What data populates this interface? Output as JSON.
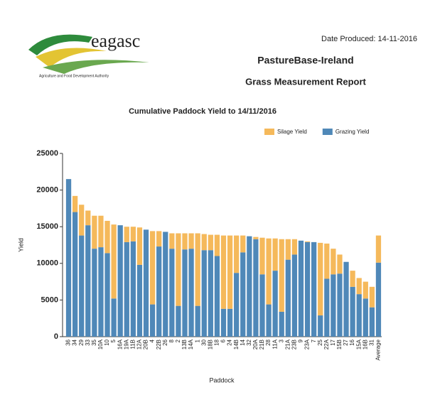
{
  "header": {
    "logo_text": "eagasc",
    "logo_tagline": "Agriculture and Food Development Authority",
    "date_produced": "Date Produced: 14-11-2016",
    "org": "PastureBase-Ireland",
    "report": "Grass Measurement Report"
  },
  "chart_data": {
    "type": "stacked_bar",
    "title": "Cumulative Paddock Yield to 14/11/2016",
    "x_label": "Paddock",
    "y_label": "Yield",
    "categories": [
      "36",
      "34",
      "29",
      "33",
      "35",
      "10A",
      "10",
      "5",
      "16A",
      "19A",
      "11B",
      "12A",
      "20B",
      "4",
      "22B",
      "26",
      "8",
      "2",
      "13B",
      "14A",
      "1",
      "30",
      "18B",
      "18",
      "6",
      "24",
      "14B",
      "14",
      "32",
      "20A",
      "21B",
      "28",
      "11A",
      "3",
      "21A",
      "23B",
      "9",
      "23A",
      "7",
      "25",
      "22A",
      "17",
      "15B",
      "27",
      "16",
      "15A",
      "16B",
      "31",
      "Average"
    ],
    "series": [
      {
        "name": "Grazing Yield",
        "color": "#4f88b8",
        "values": [
          21500,
          17000,
          13800,
          15200,
          12000,
          12200,
          11400,
          5200,
          15200,
          12900,
          13000,
          9800,
          14600,
          4400,
          12300,
          14300,
          12000,
          4200,
          11900,
          12000,
          4200,
          11800,
          11800,
          11000,
          3800,
          3800,
          8700,
          11500,
          13700,
          13300,
          8500,
          4400,
          9000,
          3400,
          10500,
          11200,
          13100,
          12900,
          12900,
          2900,
          7900,
          8500,
          8600,
          10200,
          6800,
          5800,
          5200,
          4000,
          10100
        ]
      },
      {
        "name": "Silage Yield",
        "color": "#f5b95b",
        "values": [
          0,
          2200,
          4200,
          2000,
          4500,
          4300,
          4400,
          10100,
          0,
          2100,
          2000,
          5100,
          0,
          10000,
          2100,
          0,
          2100,
          9900,
          2200,
          2100,
          9900,
          2200,
          2100,
          2900,
          10000,
          10000,
          5100,
          2300,
          0,
          300,
          5000,
          9000,
          4400,
          9900,
          2800,
          2100,
          0,
          100,
          0,
          9900,
          4800,
          3500,
          2600,
          0,
          2200,
          2200,
          2300,
          2800,
          3700
        ]
      }
    ],
    "ylim": [
      0,
      25000
    ],
    "yticks": [
      0,
      5000,
      10000,
      15000,
      20000,
      25000
    ],
    "legend": "top-right"
  }
}
